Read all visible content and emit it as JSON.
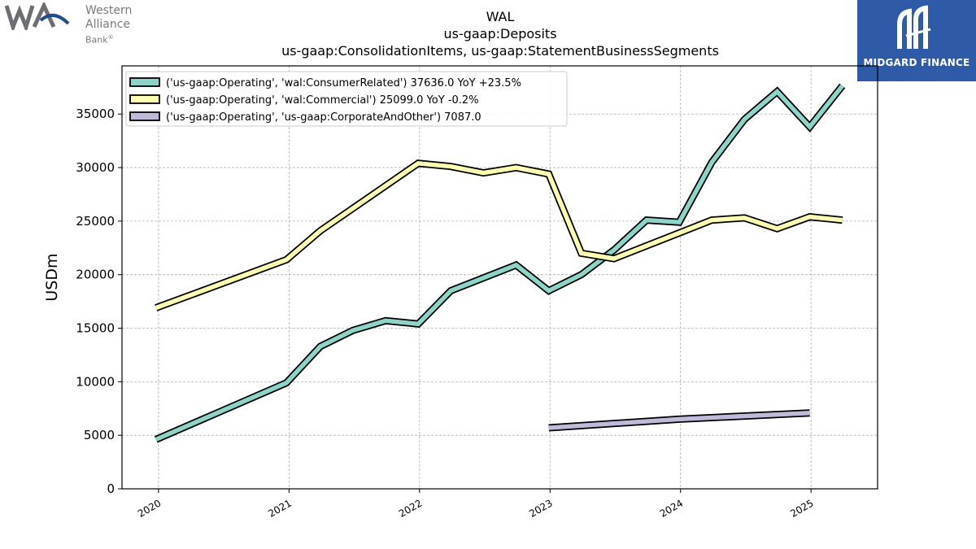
{
  "logos": {
    "left": {
      "line1": "Western Alliance",
      "line2": "Bank",
      "mark": "®"
    },
    "right": {
      "text": "MIDGARD FINANCE"
    }
  },
  "chart_data": {
    "type": "line",
    "title": [
      "WAL",
      "us-gaap:Deposits",
      "us-gaap:ConsolidationItems, us-gaap:StatementBusinessSegments"
    ],
    "xlabel": "",
    "ylabel": "USDm",
    "ylim": [
      0,
      39500
    ],
    "xlim": [
      2019.72,
      2025.51
    ],
    "yticks": [
      0,
      5000,
      10000,
      15000,
      20000,
      25000,
      30000,
      35000
    ],
    "xticks": [
      2020,
      2021,
      2022,
      2023,
      2024,
      2025
    ],
    "grid": true,
    "legend_position": "top-left",
    "series": [
      {
        "name": "('us-gaap:Operating', 'wal:ConsumerRelated') 37636.0 YoY +23.5%",
        "color": "#8dd3c7",
        "points": [
          [
            2019.98,
            4600
          ],
          [
            2020.98,
            9900
          ],
          [
            2021.24,
            13300
          ],
          [
            2021.49,
            14800
          ],
          [
            2021.74,
            15700
          ],
          [
            2021.99,
            15400
          ],
          [
            2022.24,
            18500
          ],
          [
            2022.49,
            19700
          ],
          [
            2022.74,
            20900
          ],
          [
            2022.99,
            18500
          ],
          [
            2023.24,
            20000
          ],
          [
            2023.49,
            22300
          ],
          [
            2023.74,
            25100
          ],
          [
            2023.99,
            24900
          ],
          [
            2024.24,
            30500
          ],
          [
            2024.49,
            34500
          ],
          [
            2024.74,
            37100
          ],
          [
            2024.99,
            33800
          ],
          [
            2025.24,
            37636
          ]
        ]
      },
      {
        "name": "('us-gaap:Operating', 'wal:Commercial') 25099.0 YoY -0.2%",
        "color": "#ffffb3",
        "points": [
          [
            2019.98,
            16900
          ],
          [
            2020.98,
            21400
          ],
          [
            2021.24,
            24100
          ],
          [
            2021.49,
            26200
          ],
          [
            2021.74,
            28300
          ],
          [
            2021.99,
            30400
          ],
          [
            2022.24,
            30100
          ],
          [
            2022.49,
            29500
          ],
          [
            2022.74,
            30000
          ],
          [
            2022.99,
            29400
          ],
          [
            2023.24,
            22000
          ],
          [
            2023.49,
            21500
          ],
          [
            2023.74,
            22700
          ],
          [
            2023.99,
            23900
          ],
          [
            2024.24,
            25100
          ],
          [
            2024.49,
            25300
          ],
          [
            2024.74,
            24300
          ],
          [
            2024.99,
            25400
          ],
          [
            2025.24,
            25099
          ]
        ]
      },
      {
        "name": "('us-gaap:Operating', 'us-gaap:CorporateAndOther') 7087.0",
        "color": "#bebada",
        "points": [
          [
            2022.99,
            5700
          ],
          [
            2023.99,
            6500
          ],
          [
            2024.99,
            7087
          ]
        ]
      }
    ]
  }
}
